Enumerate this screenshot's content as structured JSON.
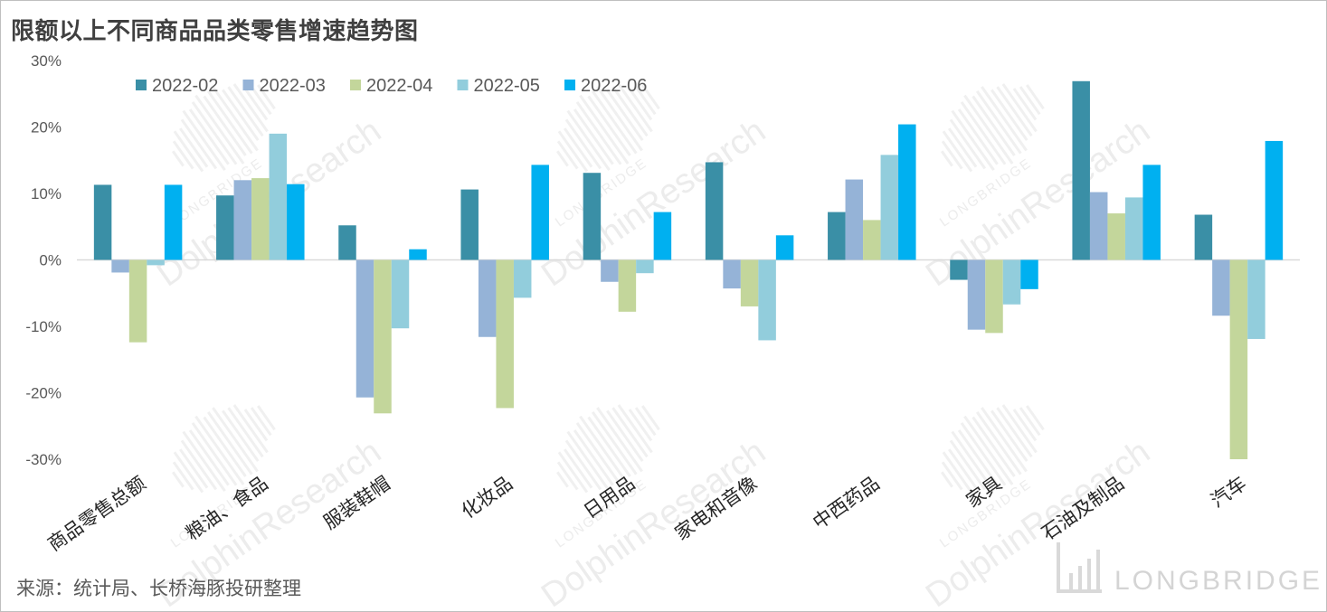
{
  "title": "限额以上不同商品品类零售增速趋势图",
  "source": "来源：统计局、长桥海豚投研整理",
  "watermark": {
    "small": "LONGBRIDGE",
    "large": "DolphinResearch",
    "brand": "LONGBRIDGE"
  },
  "chart_data": {
    "type": "bar",
    "title": "限额以上不同商品品类零售增速趋势图",
    "xlabel": "",
    "ylabel": "",
    "ylim": [
      -30,
      30
    ],
    "yticks": [
      30,
      20,
      10,
      0,
      -10,
      -20,
      -30
    ],
    "ytick_labels": [
      "30%",
      "20%",
      "10%",
      "0%",
      "-10%",
      "-20%",
      "-30%"
    ],
    "grid": false,
    "legend_position": "top-left",
    "categories": [
      "商品零售总额",
      "粮油、食品",
      "服装鞋帽",
      "化妆品",
      "日用品",
      "家电和音像",
      "中西药品",
      "家具",
      "石油及制品",
      "汽车"
    ],
    "series": [
      {
        "name": "2022-02",
        "color": "#3a8fa6",
        "values": [
          11.3,
          9.7,
          5.2,
          10.6,
          13.1,
          14.7,
          7.2,
          -3.0,
          26.9,
          6.8
        ]
      },
      {
        "name": "2022-03",
        "color": "#95b3d7",
        "values": [
          -1.9,
          12.0,
          -20.7,
          -11.6,
          -3.3,
          -4.3,
          12.1,
          -10.5,
          10.2,
          -8.4
        ]
      },
      {
        "name": "2022-04",
        "color": "#c3d69b",
        "values": [
          -12.4,
          12.3,
          -23.1,
          -22.3,
          -7.8,
          -7.0,
          6.0,
          -11.0,
          7.0,
          -30.0
        ]
      },
      {
        "name": "2022-05",
        "color": "#92cddc",
        "values": [
          -0.8,
          19.0,
          -10.3,
          -5.7,
          -2.0,
          -12.1,
          15.8,
          -6.7,
          9.4,
          -11.9
        ]
      },
      {
        "name": "2022-06",
        "color": "#00b0f0",
        "values": [
          11.3,
          11.4,
          1.6,
          14.3,
          7.2,
          3.7,
          20.4,
          -4.4,
          14.3,
          17.9
        ]
      }
    ]
  }
}
